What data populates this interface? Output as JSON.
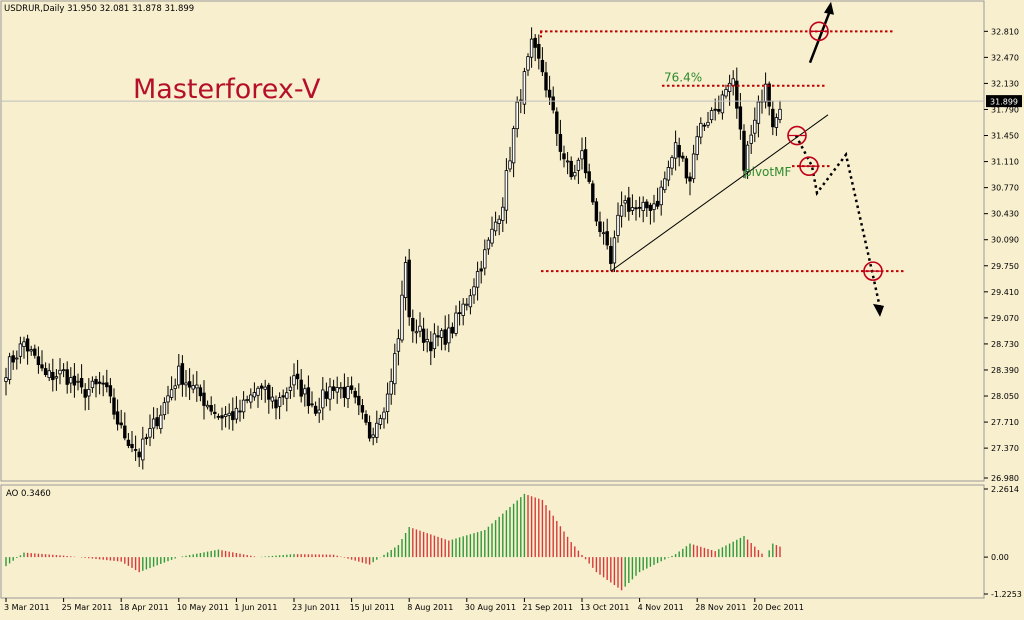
{
  "header": {
    "symbol_line": "USDRUR,Daily  31.950 32.081 31.878 31.899",
    "watermark": "Masterforex-V"
  },
  "indicator": {
    "label": "AO 0.3460",
    "ticks": [
      "2.2614",
      "0.00",
      "-1.2253"
    ]
  },
  "colors": {
    "background": "#f8efcf",
    "candle": "#000000",
    "level_line": "#c00000",
    "annotation": "#2e8b2e",
    "ao_up": "#2e9a3a",
    "ao_down": "#d83a3a"
  },
  "chart_data": {
    "type": "candlestick",
    "symbol": "USDRUR",
    "timeframe": "Daily",
    "last_price": "31.899",
    "ylim": [
      26.98,
      33.01
    ],
    "price_ticks": [
      "32.810",
      "32.470",
      "32.130",
      "31.790",
      "31.450",
      "31.110",
      "30.770",
      "30.430",
      "30.090",
      "29.750",
      "29.410",
      "29.070",
      "28.730",
      "28.390",
      "28.050",
      "27.710",
      "27.370",
      "26.980"
    ],
    "date_ticks": [
      "3 Mar 2011",
      "25 Mar 2011",
      "18 Apr 2011",
      "10 May 2011",
      "1 Jun 2011",
      "23 Jun 2011",
      "15 Jul 2011",
      "8 Aug 2011",
      "30 Aug 2011",
      "21 Sep 2011",
      "13 Oct 2011",
      "4 Nov 2011",
      "28 Nov 2011",
      "20 Dec 2011"
    ],
    "close_path": [
      {
        "date": "3 Mar 2011",
        "price": 28.4
      },
      {
        "date": "10 Mar 2011",
        "price": 28.75
      },
      {
        "date": "18 Mar 2011",
        "price": 28.3
      },
      {
        "date": "25 Mar 2011",
        "price": 28.35
      },
      {
        "date": "1 Apr 2011",
        "price": 28.1
      },
      {
        "date": "11 Apr 2011",
        "price": 28.2
      },
      {
        "date": "18 Apr 2011",
        "price": 27.6
      },
      {
        "date": "25 Apr 2011",
        "price": 27.3
      },
      {
        "date": "3 May 2011",
        "price": 27.85
      },
      {
        "date": "10 May 2011",
        "price": 28.35
      },
      {
        "date": "17 May 2011",
        "price": 28.1
      },
      {
        "date": "25 May 2011",
        "price": 27.8
      },
      {
        "date": "1 Jun 2011",
        "price": 27.8
      },
      {
        "date": "9 Jun 2011",
        "price": 28.15
      },
      {
        "date": "16 Jun 2011",
        "price": 27.95
      },
      {
        "date": "23 Jun 2011",
        "price": 28.25
      },
      {
        "date": "1 Jul 2011",
        "price": 27.9
      },
      {
        "date": "8 Jul 2011",
        "price": 28.2
      },
      {
        "date": "15 Jul 2011",
        "price": 28.05
      },
      {
        "date": "22 Jul 2011",
        "price": 27.55
      },
      {
        "date": "29 Jul 2011",
        "price": 28.05
      },
      {
        "date": "3 Aug 2011",
        "price": 28.8
      },
      {
        "date": "5 Aug 2011",
        "price": 29.85
      },
      {
        "date": "8 Aug 2011",
        "price": 29.0
      },
      {
        "date": "16 Aug 2011",
        "price": 28.75
      },
      {
        "date": "23 Aug 2011",
        "price": 28.85
      },
      {
        "date": "30 Aug 2011",
        "price": 29.3
      },
      {
        "date": "6 Sep 2011",
        "price": 29.9
      },
      {
        "date": "13 Sep 2011",
        "price": 30.6
      },
      {
        "date": "19 Sep 2011",
        "price": 31.8
      },
      {
        "date": "23 Sep 2011",
        "price": 32.6
      },
      {
        "date": "28 Sep 2011",
        "price": 32.3
      },
      {
        "date": "5 Oct 2011",
        "price": 31.3
      },
      {
        "date": "10 Oct 2011",
        "price": 30.9
      },
      {
        "date": "13 Oct 2011",
        "price": 31.2
      },
      {
        "date": "19 Oct 2011",
        "price": 30.4
      },
      {
        "date": "25 Oct 2011",
        "price": 29.75
      },
      {
        "date": "28 Oct 2011",
        "price": 30.6
      },
      {
        "date": "4 Nov 2011",
        "price": 30.45
      },
      {
        "date": "11 Nov 2011",
        "price": 30.6
      },
      {
        "date": "18 Nov 2011",
        "price": 31.3
      },
      {
        "date": "24 Nov 2011",
        "price": 30.9
      },
      {
        "date": "28 Nov 2011",
        "price": 31.5
      },
      {
        "date": "5 Dec 2011",
        "price": 31.8
      },
      {
        "date": "12 Dec 2011",
        "price": 32.1
      },
      {
        "date": "15 Dec 2011",
        "price": 31.1
      },
      {
        "date": "20 Dec 2011",
        "price": 31.6
      },
      {
        "date": "23 Dec 2011",
        "price": 32.2
      },
      {
        "date": "27 Dec 2011",
        "price": 31.65
      },
      {
        "date": "29 Dec 2011",
        "price": 31.9
      }
    ],
    "levels": [
      {
        "name": "resistance",
        "price": 32.81
      },
      {
        "name": "fib-76.4",
        "price": 32.1
      },
      {
        "name": "pivot",
        "price": 31.05
      },
      {
        "name": "support",
        "price": 29.68
      }
    ],
    "trendline": [
      {
        "date": "25 Oct 2011",
        "price": 29.68
      },
      {
        "date": "29 Dec 2011",
        "price": 31.7
      }
    ],
    "annotations": [
      {
        "text": "76.4%",
        "level": "fib-76.4"
      },
      {
        "text": "pivotMF",
        "level": "pivot"
      }
    ],
    "projection": [
      {
        "date": "29 Dec 2011",
        "price": 31.45
      },
      {
        "date": "4 Jan 2012",
        "price": 31.05
      },
      {
        "date": "8 Jan 2012",
        "price": 30.7
      },
      {
        "date": "16 Jan 2012",
        "price": 31.2
      },
      {
        "date": "25 Jan 2012",
        "price": 29.68
      },
      {
        "date": "27 Jan 2012",
        "price": 29.2
      }
    ],
    "upside_target": {
      "from_price": 32.4,
      "to_price": 33.0,
      "circle_price": 32.81
    },
    "ao_path": [
      {
        "date": "3 Mar 2011",
        "value": -0.3
      },
      {
        "date": "10 Mar 2011",
        "value": 0.15
      },
      {
        "date": "25 Mar 2011",
        "value": 0.05
      },
      {
        "date": "18 Apr 2011",
        "value": -0.15
      },
      {
        "date": "25 Apr 2011",
        "value": -0.5
      },
      {
        "date": "10 May 2011",
        "value": 0.0
      },
      {
        "date": "25 May 2011",
        "value": 0.25
      },
      {
        "date": "9 Jun 2011",
        "value": 0.0
      },
      {
        "date": "23 Jun 2011",
        "value": 0.1
      },
      {
        "date": "8 Jul 2011",
        "value": 0.08
      },
      {
        "date": "22 Jul 2011",
        "value": -0.25
      },
      {
        "date": "3 Aug 2011",
        "value": 0.4
      },
      {
        "date": "8 Aug 2011",
        "value": 1.0
      },
      {
        "date": "23 Aug 2011",
        "value": 0.55
      },
      {
        "date": "6 Sep 2011",
        "value": 0.9
      },
      {
        "date": "21 Sep 2011",
        "value": 2.1
      },
      {
        "date": "28 Sep 2011",
        "value": 1.9
      },
      {
        "date": "10 Oct 2011",
        "value": 0.5
      },
      {
        "date": "19 Oct 2011",
        "value": -0.5
      },
      {
        "date": "28 Oct 2011",
        "value": -1.1
      },
      {
        "date": "4 Nov 2011",
        "value": -0.5
      },
      {
        "date": "18 Nov 2011",
        "value": 0.1
      },
      {
        "date": "24 Nov 2011",
        "value": 0.45
      },
      {
        "date": "5 Dec 2011",
        "value": 0.2
      },
      {
        "date": "15 Dec 2011",
        "value": 0.7
      },
      {
        "date": "20 Dec 2011",
        "value": 0.35
      },
      {
        "date": "23 Dec 2011",
        "value": 0.0
      },
      {
        "date": "27 Dec 2011",
        "value": 0.45
      },
      {
        "date": "29 Dec 2011",
        "value": 0.35
      }
    ]
  }
}
